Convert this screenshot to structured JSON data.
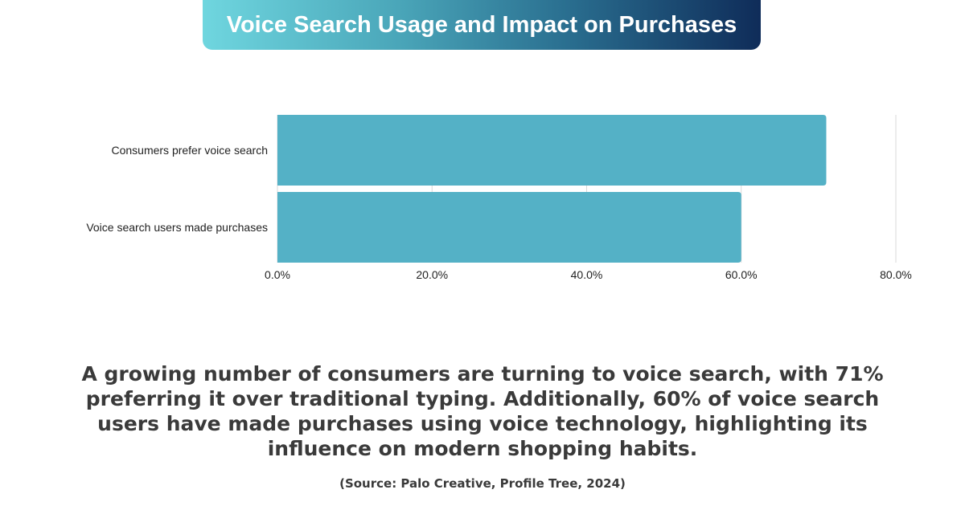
{
  "chart_data": {
    "type": "bar",
    "orientation": "horizontal",
    "title": "Voice Search Usage and Impact on Purchases",
    "categories": [
      "Consumers prefer voice search",
      "Voice search users made purchases"
    ],
    "values": [
      71,
      60
    ],
    "xlim": [
      0,
      80
    ],
    "xticks": [
      0,
      20,
      40,
      60,
      80
    ],
    "xtick_labels": [
      "0.0%",
      "20.0%",
      "40.0%",
      "60.0%",
      "80.0%"
    ],
    "grid": true,
    "bar_color": "#54b1c6"
  },
  "description": "A growing number of consumers are turning to voice search, with 71% preferring it over traditional typing. Additionally, 60% of voice search users have made purchases using voice technology, highlighting its influence on modern shopping habits.",
  "source": "(Source: Palo Creative, Profile Tree, 2024)"
}
